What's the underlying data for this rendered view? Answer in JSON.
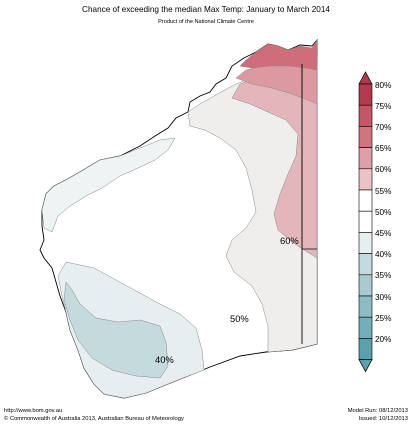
{
  "header": {
    "title": "Chance of exceeding the median Max Temp: January to March 2014",
    "subtitle": "Product of the National Climate Centre"
  },
  "map": {
    "labels": [
      "60%",
      "50%",
      "40%"
    ]
  },
  "legend": {
    "items": [
      {
        "label": "80%",
        "color": "#b23a4e"
      },
      {
        "label": "75%",
        "color": "#c4566a"
      },
      {
        "label": "70%",
        "color": "#d07480"
      },
      {
        "label": "65%",
        "color": "#dea0a8"
      },
      {
        "label": "60%",
        "color": "#ebc3c6"
      },
      {
        "label": "55%",
        "color": "#ffffff"
      },
      {
        "label": "50%",
        "color": "#ffffff"
      },
      {
        "label": "45%",
        "color": "#e6eef0"
      },
      {
        "label": "40%",
        "color": "#c4dadd"
      },
      {
        "label": "35%",
        "color": "#a9cacf"
      },
      {
        "label": "30%",
        "color": "#8fbcc2"
      },
      {
        "label": "25%",
        "color": "#72afb8"
      },
      {
        "label": "20%",
        "color": "#5aa1ad"
      }
    ]
  },
  "footer": {
    "url": "http://www.bom.gov.au",
    "copyright": "©  Commonwealth of Australia 2013, Australian Bureau of Meteorology",
    "model_run": "Model Run: 08/12/2013",
    "issued": "Issued: 10/12/2013"
  }
}
